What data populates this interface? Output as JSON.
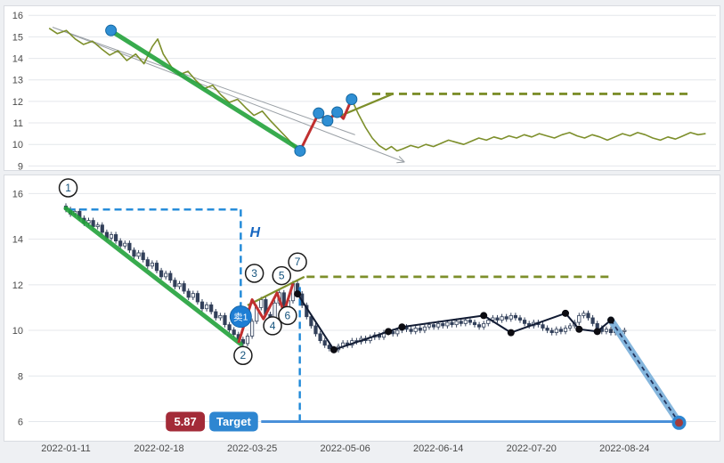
{
  "page": {
    "bg": "#eef0f3",
    "plot_bg": "#ffffff",
    "grid_color": "#e4e7eb",
    "axis_text_color": "#4a4a4a"
  },
  "chart_data": [
    {
      "type": "line",
      "name": "pattern-overview-chart",
      "ylim": [
        8.85,
        16.3
      ],
      "yticks": [
        "16",
        "15",
        "14",
        "13",
        "12",
        "11",
        "10",
        "9"
      ],
      "ytick_values": [
        16,
        15,
        14,
        13,
        12,
        11,
        10,
        9
      ],
      "series": {
        "name": "price-line",
        "color": "#7d8f2b",
        "points": [
          [
            0.03,
            15.4
          ],
          [
            0.042,
            15.15
          ],
          [
            0.055,
            15.3
          ],
          [
            0.068,
            14.9
          ],
          [
            0.08,
            14.65
          ],
          [
            0.093,
            14.8
          ],
          [
            0.106,
            14.45
          ],
          [
            0.118,
            14.15
          ],
          [
            0.13,
            14.35
          ],
          [
            0.143,
            13.9
          ],
          [
            0.156,
            14.2
          ],
          [
            0.168,
            13.75
          ],
          [
            0.18,
            14.55
          ],
          [
            0.188,
            14.9
          ],
          [
            0.196,
            14.2
          ],
          [
            0.208,
            13.6
          ],
          [
            0.22,
            13.25
          ],
          [
            0.232,
            13.4
          ],
          [
            0.244,
            12.95
          ],
          [
            0.256,
            12.6
          ],
          [
            0.268,
            12.75
          ],
          [
            0.28,
            12.3
          ],
          [
            0.292,
            11.95
          ],
          [
            0.304,
            12.1
          ],
          [
            0.316,
            11.7
          ],
          [
            0.328,
            11.35
          ],
          [
            0.34,
            11.55
          ],
          [
            0.352,
            11.1
          ],
          [
            0.364,
            10.7
          ],
          [
            0.376,
            10.3
          ],
          [
            0.386,
            9.95
          ],
          [
            0.395,
            9.7
          ],
          [
            0.404,
            10.3
          ],
          [
            0.413,
            10.9
          ],
          [
            0.422,
            11.45
          ],
          [
            0.431,
            11.1
          ],
          [
            0.44,
            11.3
          ],
          [
            0.449,
            11.5
          ],
          [
            0.458,
            11.2
          ],
          [
            0.47,
            12.1
          ],
          [
            0.48,
            11.4
          ],
          [
            0.49,
            10.8
          ],
          [
            0.5,
            10.3
          ],
          [
            0.51,
            9.95
          ],
          [
            0.52,
            9.75
          ],
          [
            0.528,
            9.9
          ],
          [
            0.536,
            9.7
          ],
          [
            0.545,
            9.8
          ],
          [
            0.556,
            9.95
          ],
          [
            0.567,
            9.85
          ],
          [
            0.578,
            10.0
          ],
          [
            0.589,
            9.9
          ],
          [
            0.6,
            10.05
          ],
          [
            0.611,
            10.2
          ],
          [
            0.622,
            10.1
          ],
          [
            0.633,
            10.0
          ],
          [
            0.644,
            10.15
          ],
          [
            0.655,
            10.3
          ],
          [
            0.666,
            10.2
          ],
          [
            0.677,
            10.35
          ],
          [
            0.688,
            10.25
          ],
          [
            0.699,
            10.4
          ],
          [
            0.71,
            10.3
          ],
          [
            0.721,
            10.45
          ],
          [
            0.732,
            10.35
          ],
          [
            0.743,
            10.5
          ],
          [
            0.754,
            10.4
          ],
          [
            0.765,
            10.3
          ],
          [
            0.776,
            10.45
          ],
          [
            0.787,
            10.55
          ],
          [
            0.798,
            10.4
          ],
          [
            0.809,
            10.3
          ],
          [
            0.82,
            10.45
          ],
          [
            0.831,
            10.35
          ],
          [
            0.842,
            10.2
          ],
          [
            0.853,
            10.35
          ],
          [
            0.864,
            10.5
          ],
          [
            0.875,
            10.4
          ],
          [
            0.886,
            10.55
          ],
          [
            0.897,
            10.45
          ],
          [
            0.908,
            10.3
          ],
          [
            0.919,
            10.2
          ],
          [
            0.93,
            10.35
          ],
          [
            0.941,
            10.25
          ],
          [
            0.952,
            10.4
          ],
          [
            0.963,
            10.55
          ],
          [
            0.974,
            10.45
          ],
          [
            0.985,
            10.5
          ]
        ]
      },
      "overlays": {
        "trendline": {
          "color": "#23a23b",
          "width": 5,
          "from": [
            0.118,
            15.32
          ],
          "to": [
            0.397,
            9.72
          ]
        },
        "channel_color": "#9aa0a6",
        "channel": [
          {
            "from": [
              0.035,
              15.45
            ],
            "to": [
              0.547,
              9.18
            ],
            "arrow": true
          },
          {
            "from": [
              0.035,
              15.45
            ],
            "to": [
              0.475,
              10.45
            ],
            "arrow": false
          }
        ],
        "zigzag": {
          "color": "#c02f2f",
          "width": 3,
          "points": [
            [
              0.395,
              9.7
            ],
            [
              0.422,
              11.45
            ],
            [
              0.435,
              11.1
            ],
            [
              0.449,
              11.5
            ],
            [
              0.458,
              11.2
            ],
            [
              0.47,
              12.1
            ]
          ]
        },
        "dots": {
          "color": "#2f8fd4",
          "ring": "#1467a0",
          "points": [
            [
              0.12,
              15.3
            ],
            [
              0.395,
              9.7
            ],
            [
              0.422,
              11.45
            ],
            [
              0.435,
              11.1
            ],
            [
              0.449,
              11.5
            ],
            [
              0.47,
              12.1
            ]
          ]
        },
        "resistance": {
          "color": "#7d8f2b",
          "value": 12.35,
          "from": 0.5,
          "to": 0.962
        },
        "support_seg": {
          "color": "#7d8f2b",
          "from": [
            0.455,
            11.35
          ],
          "to": [
            0.53,
            12.35
          ]
        }
      }
    },
    {
      "type": "candlestick",
      "name": "main-candlestick-chart",
      "ylim": [
        5.2,
        16.6
      ],
      "yticks": [
        "16",
        "14",
        "12",
        "10",
        "8",
        "6"
      ],
      "ytick_values": [
        16,
        14,
        12,
        10,
        8,
        6
      ],
      "xticks": [
        {
          "label": "2022-01-11",
          "bar": 0
        },
        {
          "label": "2022-02-18",
          "bar": 20.5
        },
        {
          "label": "2022-03-25",
          "bar": 41
        },
        {
          "label": "2022-05-06",
          "bar": 61.5
        },
        {
          "label": "2022-06-14",
          "bar": 82
        },
        {
          "label": "2022-07-20",
          "bar": 102.5
        },
        {
          "label": "2022-08-24",
          "bar": 123
        }
      ],
      "candles": {
        "first_open": 15.45,
        "wick": 0.12,
        "up_color": "#f5f7f9",
        "down_color": "#32405a",
        "border": "#32405a",
        "closes": [
          15.3,
          15.1,
          15.22,
          14.92,
          14.7,
          14.82,
          14.55,
          14.62,
          14.3,
          14.05,
          14.2,
          13.92,
          13.7,
          13.82,
          13.52,
          13.25,
          13.4,
          13.1,
          12.82,
          12.95,
          12.62,
          12.35,
          12.5,
          12.2,
          11.92,
          12.05,
          11.72,
          11.45,
          11.62,
          11.25,
          10.95,
          11.12,
          10.82,
          10.55,
          10.65,
          10.25,
          10.02,
          9.82,
          9.6,
          9.42,
          9.75,
          10.4,
          11.0,
          11.35,
          10.7,
          10.5,
          11.2,
          11.65,
          10.85,
          11.3,
          12.05,
          11.6,
          11.1,
          10.6,
          10.2,
          9.85,
          9.55,
          9.35,
          9.2,
          9.15,
          9.3,
          9.45,
          9.35,
          9.55,
          9.5,
          9.65,
          9.55,
          9.7,
          9.8,
          9.7,
          9.9,
          9.95,
          9.85,
          10.0,
          10.15,
          10.05,
          9.95,
          10.1,
          10.0,
          10.15,
          10.25,
          10.15,
          10.3,
          10.2,
          10.35,
          10.25,
          10.4,
          10.3,
          10.45,
          10.35,
          10.25,
          10.15,
          10.3,
          10.45,
          10.55,
          10.45,
          10.6,
          10.5,
          10.65,
          10.55,
          10.45,
          10.3,
          10.2,
          10.35,
          10.25,
          10.1,
          10.0,
          9.9,
          10.05,
          9.95,
          10.1,
          10.2,
          10.35,
          10.65,
          10.75,
          10.55,
          10.3,
          10.1,
          9.95,
          10.05,
          9.9,
          10.0,
          9.95,
          10.0
        ]
      },
      "overlays": {
        "trendline": {
          "color": "#23a23b",
          "width": 5,
          "from": [
            0,
            15.35
          ],
          "to": [
            38.5,
            9.4
          ]
        },
        "zigzag": {
          "color": "#c02f2f",
          "width": 3,
          "points": [
            [
              38,
              9.45
            ],
            [
              41,
              11.35
            ],
            [
              43.5,
              10.5
            ],
            [
              46.5,
              11.65
            ],
            [
              48,
              10.8
            ],
            [
              50,
              12.05
            ]
          ]
        },
        "support_seg": {
          "color": "#7d8f2b",
          "from": [
            40,
            11.1
          ],
          "to": [
            52.5,
            12.35
          ]
        },
        "resistance": {
          "color": "#7d8f2b",
          "value": 12.35,
          "from": 53,
          "to": 120
        },
        "pivot_line": {
          "color": "#111b33",
          "width": 2,
          "points": [
            [
              51,
              11.6
            ],
            [
              59,
              9.15
            ],
            [
              71,
              9.95
            ],
            [
              74,
              10.15
            ],
            [
              92,
              10.65
            ],
            [
              98,
              9.9
            ],
            [
              110,
              10.75
            ],
            [
              113,
              10.05
            ],
            [
              117,
              9.95
            ],
            [
              120,
              10.45
            ]
          ]
        },
        "pivot_dots": {
          "color": "#0c0c12",
          "points": [
            [
              51,
              11.6
            ],
            [
              59,
              9.15
            ],
            [
              71,
              9.95
            ],
            [
              74,
              10.15
            ],
            [
              92,
              10.65
            ],
            [
              98,
              9.9
            ],
            [
              110,
              10.75
            ],
            [
              113,
              10.05
            ],
            [
              117,
              9.95
            ]
          ]
        },
        "measure": {
          "color": "#1e88d8",
          "h_value": 15.3,
          "h_from": 0.5,
          "h_to": 38.5,
          "v1_bar": 38.5,
          "v1_top": 15.3,
          "v1_bottom": 11.0,
          "v2_bar": 51.5,
          "v2_top": 11.9,
          "v2_bottom": 6.0,
          "h_label": "H",
          "h_label_at": [
            40.5,
            14.1
          ],
          "h_label_color": "#1565c0"
        },
        "target_arrow": {
          "color": "#4a90d9",
          "value": 6.0,
          "from": 43,
          "to": 134.5
        },
        "projection": {
          "band_color": "#7fb3dc",
          "dash_color": "#22335c",
          "from": [
            120,
            10.45
          ],
          "to": [
            135,
            5.95
          ],
          "start_dot": "#0c0c12",
          "end_outer": "#2e86d1",
          "end_inner": "#a33b3b"
        },
        "markers": {
          "ring": "#1b1b1b",
          "fill": "#ffffff",
          "text_color": "#14537d",
          "items": [
            {
              "label": "1",
              "at": [
                0.5,
                16.25
              ]
            },
            {
              "label": "2",
              "at": [
                39,
                8.9
              ]
            },
            {
              "label": "3",
              "at": [
                41.5,
                12.5
              ]
            },
            {
              "label": "4",
              "at": [
                45.5,
                10.2
              ]
            },
            {
              "label": "5",
              "at": [
                47.5,
                12.4
              ]
            },
            {
              "label": "6",
              "at": [
                48.8,
                10.65
              ]
            },
            {
              "label": "7",
              "at": [
                51,
                13.0
              ]
            }
          ]
        },
        "sell_marker": {
          "label": "卖1",
          "at": [
            38.5,
            10.6
          ],
          "bg": "#1e7ed4",
          "ring": "#1565a8"
        },
        "badges": {
          "value_badge": {
            "text": "5.87",
            "bg": "#a32b38",
            "from_bar": 22,
            "to_bar": 30.6
          },
          "target_badge": {
            "text": "Target",
            "bg": "#2e86d1",
            "from_bar": 31.6,
            "to_bar": 42.3
          },
          "at_value": 6.0
        }
      }
    }
  ]
}
